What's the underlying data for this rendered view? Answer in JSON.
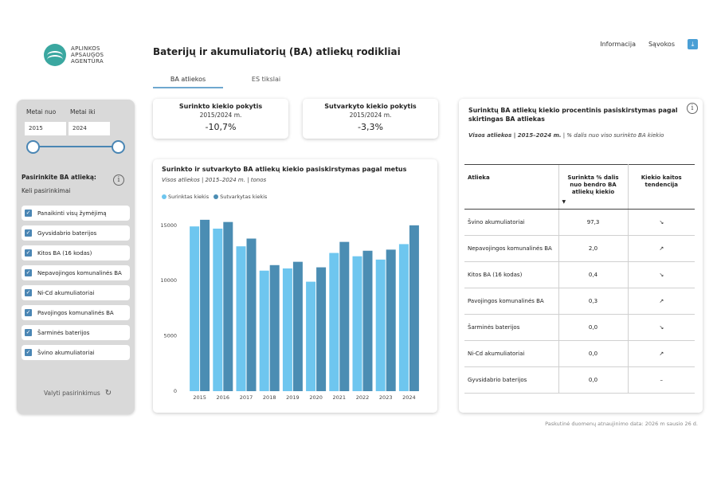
{
  "logo": {
    "line1": "APLINKOS",
    "line2": "APSAUGOS",
    "line3": "AGENTŪRA"
  },
  "page_title": "Baterijų ir akumuliatorių (BA) atliekų rodikliai",
  "top_links": {
    "info": "Informacija",
    "terms": "Sąvokos",
    "download_icon": "download-icon"
  },
  "tabs": [
    {
      "label": "BA atliekos",
      "active": true
    },
    {
      "label": "ES tikslai",
      "active": false
    }
  ],
  "sidebar": {
    "year_from_label": "Metai nuo",
    "year_to_label": "Metai iki",
    "year_from": "2015",
    "year_to": "2024",
    "choose_label": "Pasirinkite BA atlieką:",
    "multi_label": "Keli pasirinkimai",
    "items": [
      "Panaikinti visų žymėjimą",
      "Gyvsidabrio baterijos",
      "Kitos BA (16 kodas)",
      "Nepavojingos komunalinės BA",
      "Ni-Cd akumuliatoriai",
      "Pavojingos komunalinės BA",
      "Šarminės baterijos",
      "Švino akumuliatoriai"
    ],
    "reset_label": "Valyti pasirinkimus"
  },
  "kpi": [
    {
      "title": "Surinkto kiekio pokytis",
      "period": "2015/2024 m.",
      "value": "-10,7%"
    },
    {
      "title": "Sutvarkyto kiekio pokytis",
      "period": "2015/2024 m.",
      "value": "-3,3%"
    }
  ],
  "chart_data": {
    "type": "bar",
    "title": "Surinkto ir sutvarkyto BA atliekų kiekio pasiskirstymas pagal metus",
    "subtitle": "Visos atliekos | 2015–2024 m. | tonos",
    "categories": [
      "2015",
      "2016",
      "2017",
      "2018",
      "2019",
      "2020",
      "2021",
      "2022",
      "2023",
      "2024"
    ],
    "series": [
      {
        "name": "Surinktas kiekis",
        "color": "#6ec6ef",
        "values": [
          14900,
          14700,
          13100,
          10900,
          11100,
          9900,
          12500,
          12200,
          11900,
          13300
        ]
      },
      {
        "name": "Sutvarkytas kiekis",
        "color": "#4b8db3",
        "values": [
          15500,
          15300,
          13800,
          11400,
          11700,
          11200,
          13500,
          12700,
          12800,
          15000
        ]
      }
    ],
    "yticks": [
      0,
      5000,
      10000,
      15000
    ],
    "ylim": [
      0,
      16500
    ],
    "grid": false,
    "legend": "top-left"
  },
  "table": {
    "title": "Surinktų BA atliekų kiekio procentinis pasiskirstymas pagal skirtingas BA atliekas",
    "subtitle_bold": "Visos atliekos | 2015–2024 m.",
    "subtitle_rest": " | % dalis nuo viso surinkto BA kiekio",
    "headers": [
      "Atlieka",
      "Surinkta % dalis nuo bendro BA atliekų kiekio",
      "Kiekio kaitos tendencija"
    ],
    "sort_indicator": "▼",
    "rows": [
      {
        "name": "Švino akumuliatoriai",
        "share": "97,3",
        "trend": "↘"
      },
      {
        "name": "Nepavojingos komunalinės BA",
        "share": "2,0",
        "trend": "↗"
      },
      {
        "name": "Kitos BA (16 kodas)",
        "share": "0,4",
        "trend": "↘"
      },
      {
        "name": "Pavojingos komunalinės BA",
        "share": "0,3",
        "trend": "↗"
      },
      {
        "name": "Šarminės baterijos",
        "share": "0,0",
        "trend": "↘"
      },
      {
        "name": "Ni-Cd akumuliatoriai",
        "share": "0,0",
        "trend": "↗"
      },
      {
        "name": "Gyvsidabrio baterijos",
        "share": "0,0",
        "trend": "–"
      }
    ]
  },
  "footer": "Paskutinė duomenų atnaujinimo data: 2026 m sausio 26 d."
}
